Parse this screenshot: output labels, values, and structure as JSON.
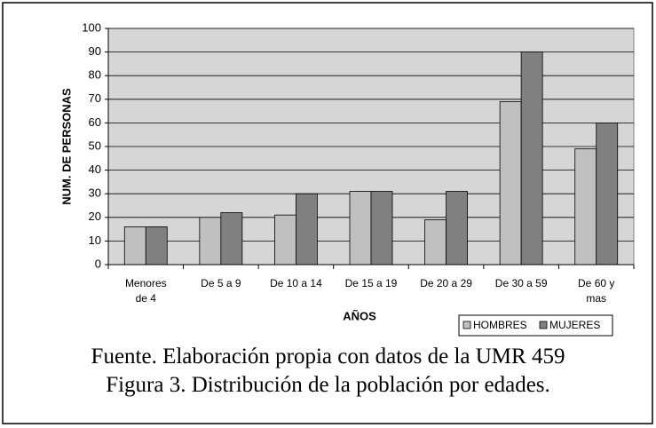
{
  "chart_data": {
    "type": "bar",
    "categories": [
      "Menores\nde 4",
      "De 5 a 9",
      "De 10 a 14",
      "De 15 a 19",
      "De 20 a 29",
      "De 30 a 59",
      "De 60  y\nmas"
    ],
    "series": [
      {
        "name": "HOMBRES",
        "color": "#c0c0c0",
        "values": [
          16,
          20,
          21,
          31,
          19,
          69,
          49
        ]
      },
      {
        "name": "MUJERES",
        "color": "#808080",
        "values": [
          16,
          22,
          30,
          31,
          31,
          90,
          60
        ]
      }
    ],
    "x_label": "AÑOS",
    "y_label": "NUM. DE PERSONAS",
    "ylim": [
      0,
      100
    ],
    "yticks": [
      0,
      10,
      20,
      30,
      40,
      50,
      60,
      70,
      80,
      90,
      100
    ],
    "grid": true,
    "legend": "bottom-right",
    "captions": [
      "Fuente. Elaboración propia con datos de la UMR 459",
      "Figura 3. Distribución de la población por edades."
    ]
  }
}
